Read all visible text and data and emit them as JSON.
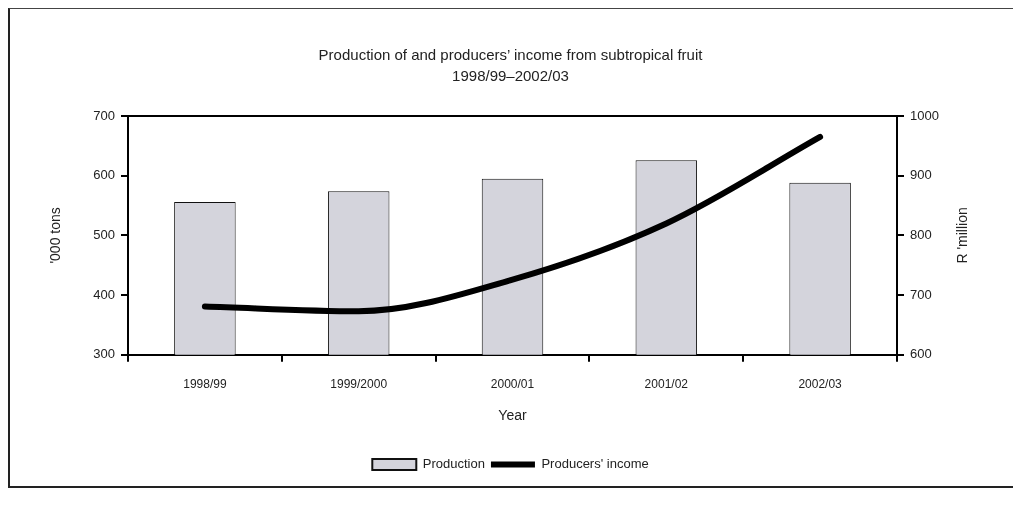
{
  "chart_data": {
    "type": "bar",
    "title": "Production of and producers’ income from subtropical fruit",
    "subtitle": "1998/99–2002/03",
    "xlabel": "Year",
    "ylabel": "'000 tons",
    "y2label": "R 'million",
    "categories": [
      "1998/99",
      "1999/2000",
      "2000/01",
      "2001/02",
      "2002/03"
    ],
    "series": [
      {
        "name": "Production",
        "color": "#d4d4dc",
        "values": [
          556,
          574,
          595,
          626,
          588
        ]
      },
      {
        "name": "Producers' income",
        "type": "line",
        "axis": "y2",
        "color": "#000000",
        "values": [
          681,
          673,
          726,
          820,
          965
        ]
      }
    ],
    "ylim": [
      300,
      700
    ],
    "yticks": [
      300,
      400,
      500,
      600,
      700
    ],
    "y2lim": [
      600,
      1000
    ],
    "y2ticks": [
      600,
      700,
      800,
      900,
      1000
    ],
    "legend": "bottom",
    "marker": "none",
    "line_style": "solid"
  }
}
